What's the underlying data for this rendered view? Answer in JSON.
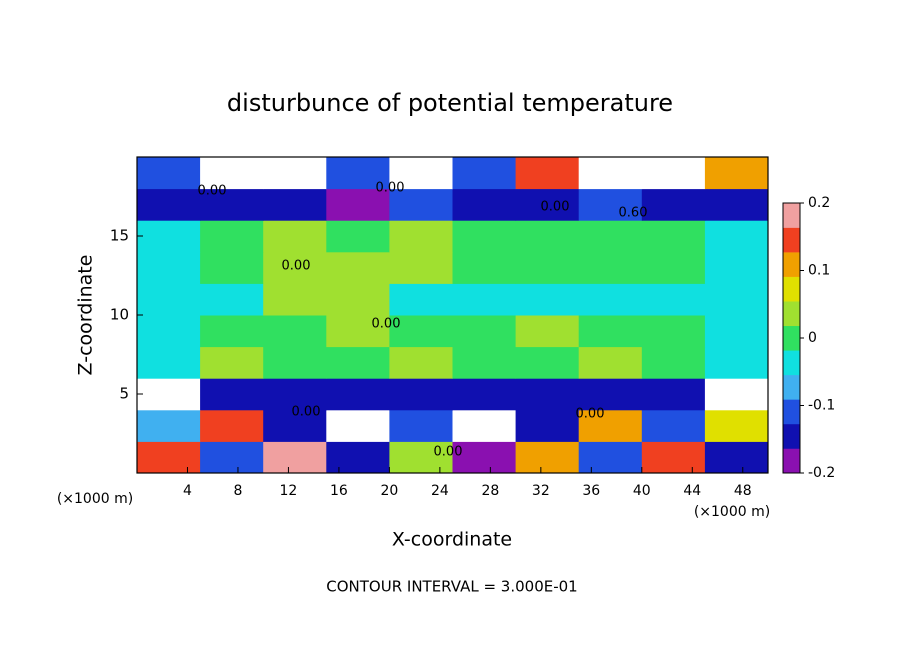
{
  "chart_data": {
    "type": "heatmap",
    "title": "disturbunce of potential temperature",
    "xlabel": "X-coordinate",
    "ylabel": "Z-coordinate",
    "x_unit": "(×1000 m)",
    "footer": "CONTOUR INTERVAL = 3.000E-01",
    "xlim": [
      0,
      50
    ],
    "ylim": [
      0,
      20
    ],
    "xticks": [
      4,
      8,
      12,
      16,
      20,
      24,
      28,
      32,
      36,
      40,
      44,
      48
    ],
    "yticks": [
      5,
      10,
      15
    ],
    "x_edges": [
      0,
      5,
      10,
      15,
      20,
      25,
      30,
      35,
      40,
      45,
      50
    ],
    "y_edges": [
      0,
      2,
      4,
      6,
      8,
      10,
      12,
      14,
      16,
      18,
      20
    ],
    "z": [
      [
        0.15,
        -0.12,
        0.18,
        -0.15,
        0.05,
        -0.18,
        0.12,
        -0.1,
        0.16,
        -0.14
      ],
      [
        -0.08,
        0.14,
        -0.16,
        0.25,
        -0.12,
        0.25,
        -0.15,
        0.1,
        -0.12,
        0.08
      ],
      [
        0.25,
        -0.15,
        -0.14,
        -0.16,
        -0.15,
        -0.14,
        -0.15,
        -0.16,
        -0.14,
        0.25
      ],
      [
        -0.04,
        0.02,
        0.01,
        0.01,
        0.02,
        0.01,
        0.01,
        0.02,
        0.01,
        -0.03
      ],
      [
        -0.03,
        0.01,
        0.01,
        0.02,
        0.01,
        0.01,
        0.02,
        0.01,
        0.01,
        -0.03
      ],
      [
        -0.05,
        -0.04,
        0.03,
        0.05,
        -0.04,
        -0.05,
        -0.05,
        -0.04,
        -0.05,
        -0.05
      ],
      [
        -0.03,
        0.01,
        0.02,
        0.04,
        0.03,
        0.01,
        0.01,
        0.01,
        0.01,
        -0.02
      ],
      [
        -0.03,
        0.01,
        0.02,
        0.01,
        0.02,
        0.01,
        0.01,
        0.01,
        0.01,
        -0.03
      ],
      [
        -0.15,
        -0.16,
        -0.14,
        -0.17,
        -0.1,
        -0.15,
        -0.16,
        -0.12,
        -0.15,
        -0.16
      ],
      [
        -0.1,
        0.25,
        0.25,
        -0.12,
        0.25,
        -0.1,
        0.15,
        0.25,
        0.25,
        0.12
      ]
    ],
    "colorbar": {
      "lim": [
        -0.2,
        0.2
      ],
      "ticks": [
        0.2,
        0.1,
        0,
        -0.1,
        -0.2
      ],
      "colors": [
        "#8a10b0",
        "#1010b0",
        "#2050e0",
        "#40b0f0",
        "#10e0e0",
        "#30e060",
        "#a0e030",
        "#e0e000",
        "#f0a000",
        "#f04020",
        "#f0a0a0"
      ],
      "over_color": "#ffffff"
    },
    "contour_labels": [
      "0.00",
      "0.00",
      "0.00",
      "0.60",
      "0.00",
      "0.00",
      "0.00",
      "0.00",
      "0.00"
    ]
  }
}
